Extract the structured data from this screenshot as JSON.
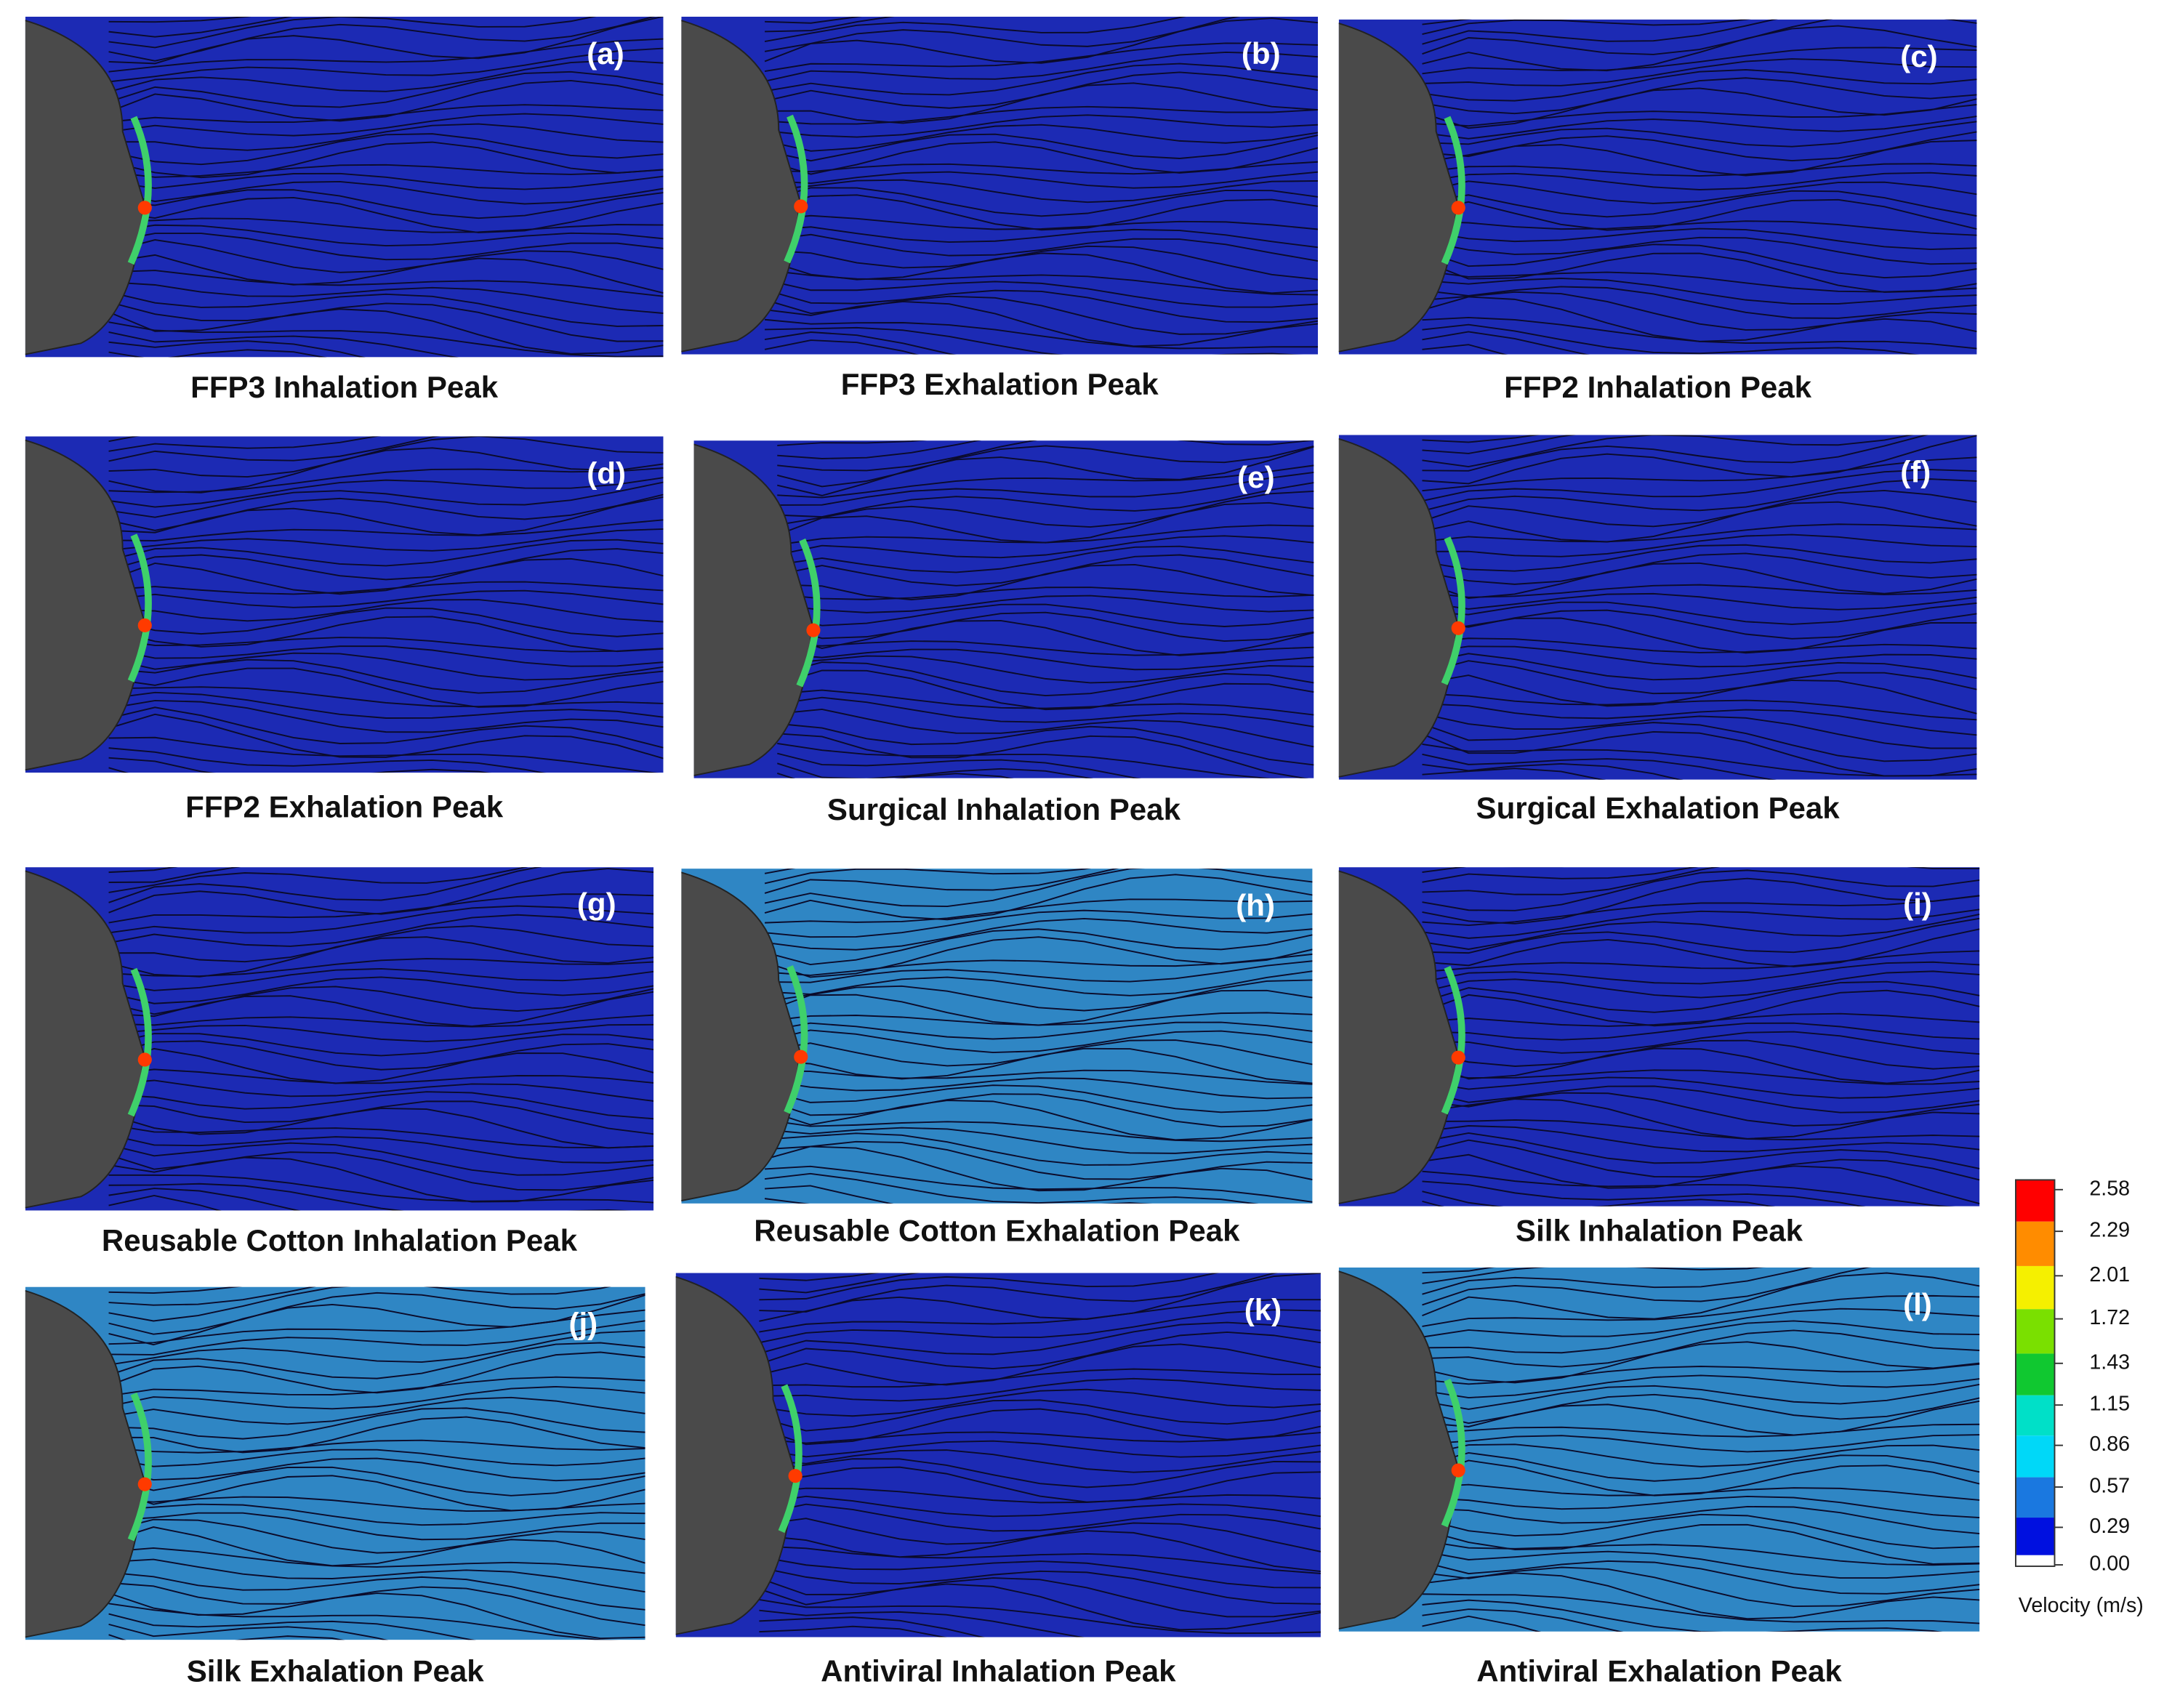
{
  "panels": [
    {
      "label": "(a)",
      "caption": "FFP3 Inhalation Peak"
    },
    {
      "label": "(b)",
      "caption": "FFP3 Exhalation Peak"
    },
    {
      "label": "(c)",
      "caption": "FFP2 Inhalation Peak"
    },
    {
      "label": "(d)",
      "caption": "FFP2 Exhalation Peak"
    },
    {
      "label": "(e)",
      "caption": "Surgical Inhalation Peak"
    },
    {
      "label": "(f)",
      "caption": "Surgical Exhalation Peak"
    },
    {
      "label": "(g)",
      "caption": "Reusable Cotton Inhalation Peak"
    },
    {
      "label": "(h)",
      "caption": "Reusable Cotton Exhalation Peak"
    },
    {
      "label": "(i)",
      "caption": "Silk Inhalation Peak"
    },
    {
      "label": "(j)",
      "caption": "Silk Exhalation Peak"
    },
    {
      "label": "(k)",
      "caption": "Antiviral Inhalation Peak"
    },
    {
      "label": "(l)",
      "caption": "Antiviral Exhalation Peak"
    }
  ],
  "colorbar": {
    "title": "Velocity (m/s)",
    "ticks": [
      "2.58",
      "2.29",
      "2.01",
      "1.72",
      "1.43",
      "1.15",
      "0.86",
      "0.57",
      "0.29",
      "0.00"
    ]
  }
}
